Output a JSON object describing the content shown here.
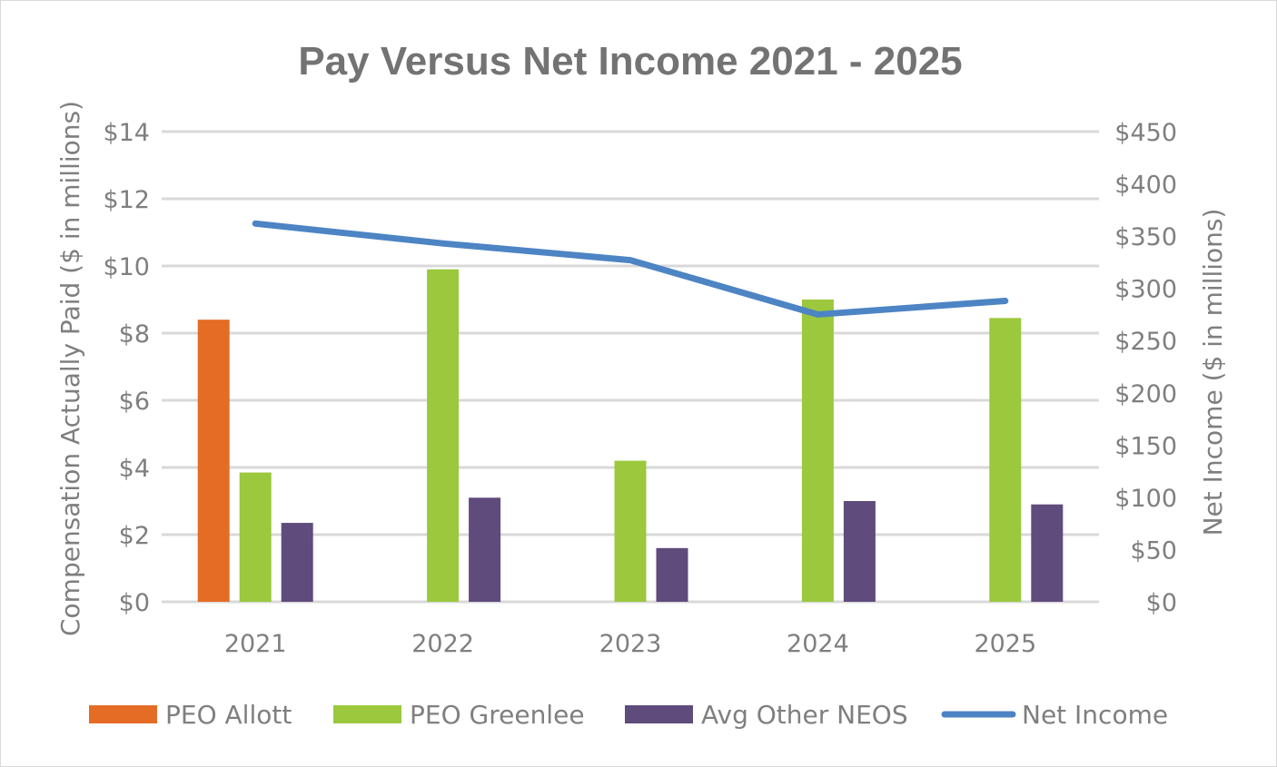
{
  "chart_data": {
    "type": "bar",
    "title": "Pay Versus Net Income 2021 - 2025",
    "categories": [
      "2021",
      "2022",
      "2023",
      "2024",
      "2025"
    ],
    "ylabel": "Compensation Actually Paid ($ in millions)",
    "y2label": "Net Income ($ in millions)",
    "ylim": [
      0,
      14
    ],
    "y2lim": [
      0,
      450
    ],
    "yticks": [
      "$0",
      "$2",
      "$4",
      "$6",
      "$8",
      "$10",
      "$12",
      "$14"
    ],
    "y2ticks": [
      "$0",
      "$50",
      "$100",
      "$150",
      "$200",
      "$250",
      "$300",
      "$350",
      "$400",
      "$450"
    ],
    "grid": true,
    "legend_position": "bottom",
    "series": [
      {
        "name": "PEO Allott",
        "type": "bar",
        "color": "#e46c25",
        "values": [
          8.4,
          null,
          null,
          null,
          null
        ]
      },
      {
        "name": "PEO Greenlee",
        "type": "bar",
        "color": "#9bc83c",
        "values": [
          3.85,
          9.9,
          4.2,
          9.0,
          8.45
        ]
      },
      {
        "name": "Avg Other NEOS",
        "type": "bar",
        "color": "#5f4b7c",
        "values": [
          2.35,
          3.1,
          1.6,
          3.0,
          2.9
        ]
      },
      {
        "name": "Net Income",
        "type": "line",
        "axis": "secondary",
        "color": "#4d84c4",
        "values": [
          362,
          343,
          327,
          275,
          288
        ]
      }
    ]
  }
}
